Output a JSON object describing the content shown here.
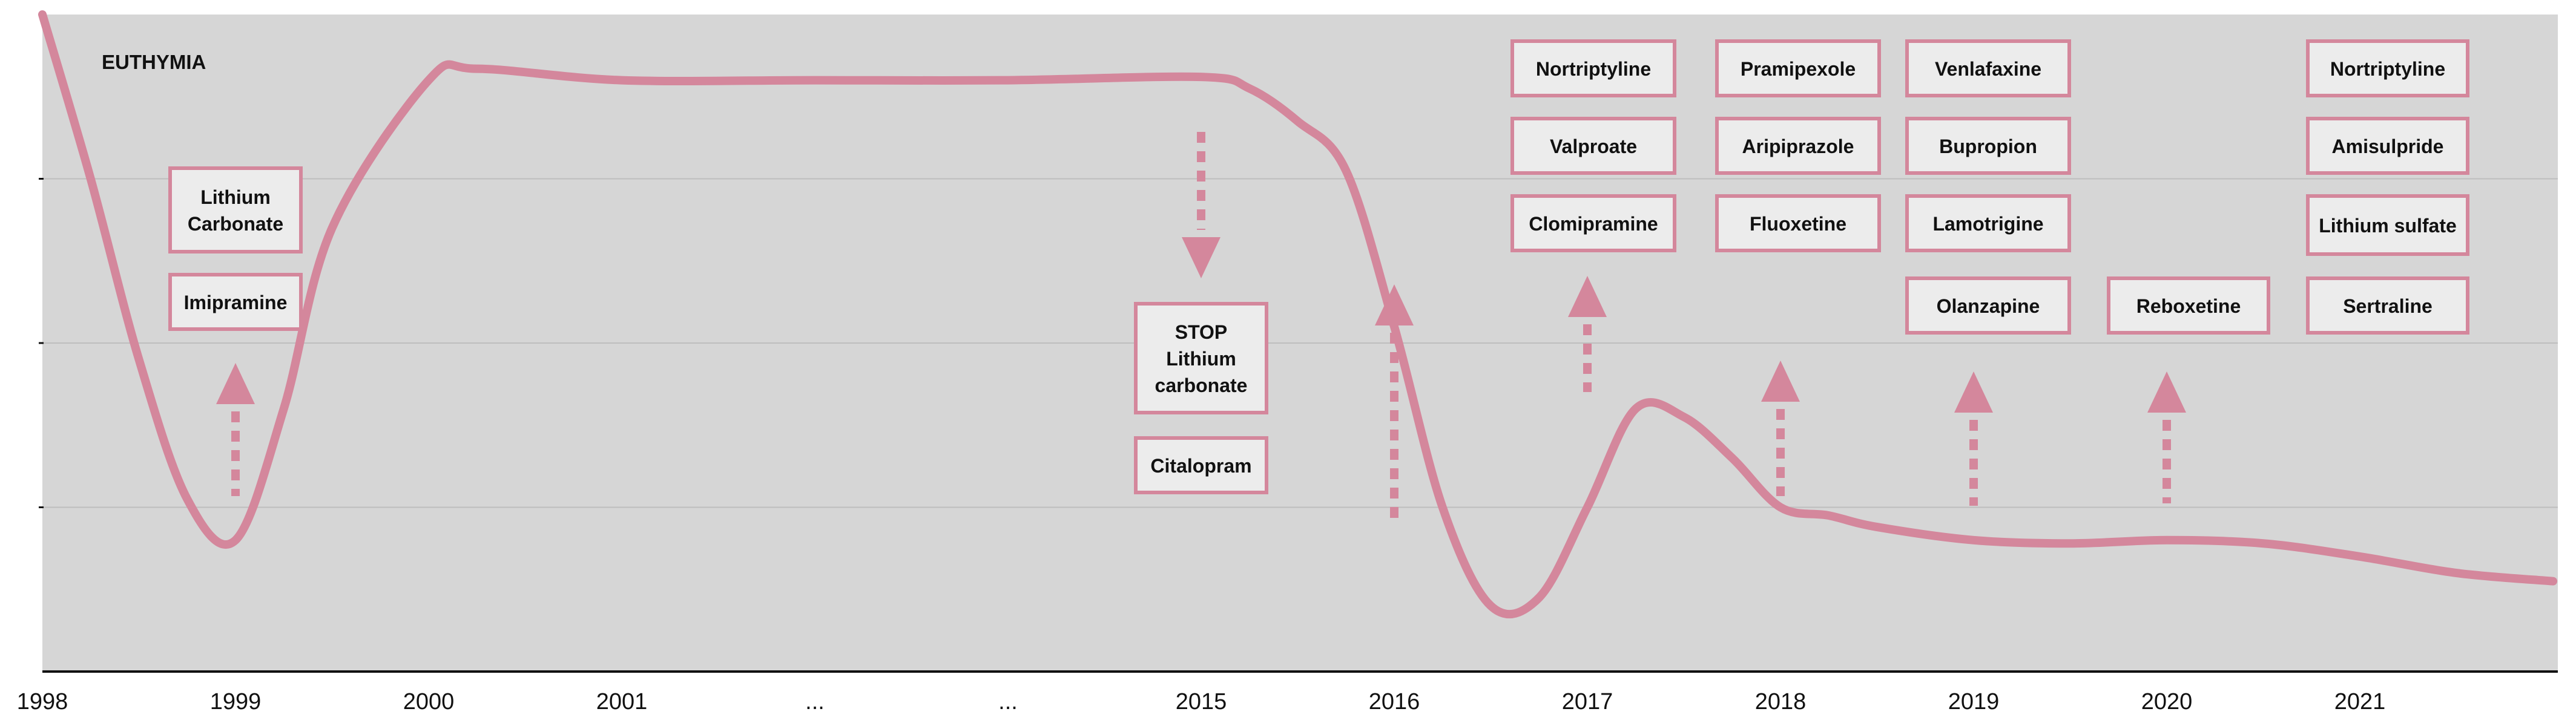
{
  "chart_data": {
    "type": "line",
    "title": "",
    "annotation_top_left": "EUTHYMIA",
    "x_tick_labels": [
      "1998",
      "1999",
      "2000",
      "2001",
      "...",
      "...",
      "2015",
      "2016",
      "2017",
      "2018",
      "2019",
      "2020",
      "2021"
    ],
    "y_tick_labels": [],
    "grid": "horizontal",
    "ylim": [
      0,
      4
    ],
    "series": [
      {
        "x": [
          0,
          0.25,
          0.5,
          0.75,
          1,
          1.25,
          1.5,
          2,
          2.25,
          3,
          4,
          5,
          6,
          6.25,
          6.5,
          6.75,
          7,
          7.25,
          7.5,
          7.75,
          8,
          8.25,
          8.5,
          8.75,
          9,
          9.25,
          9.5,
          10,
          10.5,
          11,
          11.5,
          12,
          12.5,
          13
        ],
        "values": [
          4.0,
          3.0,
          1.9,
          1.05,
          0.8,
          1.6,
          2.7,
          3.6,
          3.67,
          3.6,
          3.6,
          3.6,
          3.62,
          3.55,
          3.35,
          3.05,
          2.1,
          1.0,
          0.4,
          0.45,
          1.0,
          1.6,
          1.55,
          1.3,
          1.0,
          0.95,
          0.88,
          0.8,
          0.78,
          0.8,
          0.78,
          0.7,
          0.6,
          0.55
        ]
      }
    ],
    "annotations": [
      {
        "x": 1,
        "boxes": [
          "Lithium\nCarbonate",
          "Imipramine"
        ],
        "arrow": "up"
      },
      {
        "x": 6,
        "boxes": [
          "STOP\nLithium\ncarbonate",
          "Citalopram"
        ],
        "arrow": "down"
      },
      {
        "x": 7,
        "boxes": [
          "Nortriptyline",
          "Valproate",
          "Clomipramine"
        ],
        "arrow": "up"
      },
      {
        "x": 8,
        "boxes": [
          "Pramipexole",
          "Aripiprazole",
          "Fluoxetine"
        ],
        "arrow": "up"
      },
      {
        "x": 9,
        "boxes": [
          "Venlafaxine",
          "Bupropion",
          "Lamotrigine",
          "Olanzapine"
        ],
        "arrow": "up"
      },
      {
        "x": 10,
        "boxes": [
          "Reboxetine"
        ],
        "arrow": "up"
      },
      {
        "x": 11,
        "boxes": [
          "Nortriptyline",
          "Amisulpride",
          "Lithium sulfate",
          "Sertraline"
        ],
        "arrow": "up"
      }
    ],
    "colors": {
      "line": "#d4879c",
      "box_border": "#d4879c",
      "box_fill": "#ececec",
      "arrow": "#d4879c",
      "plot_background": "#d6d6d6",
      "grid": "#bdbdbd"
    }
  }
}
